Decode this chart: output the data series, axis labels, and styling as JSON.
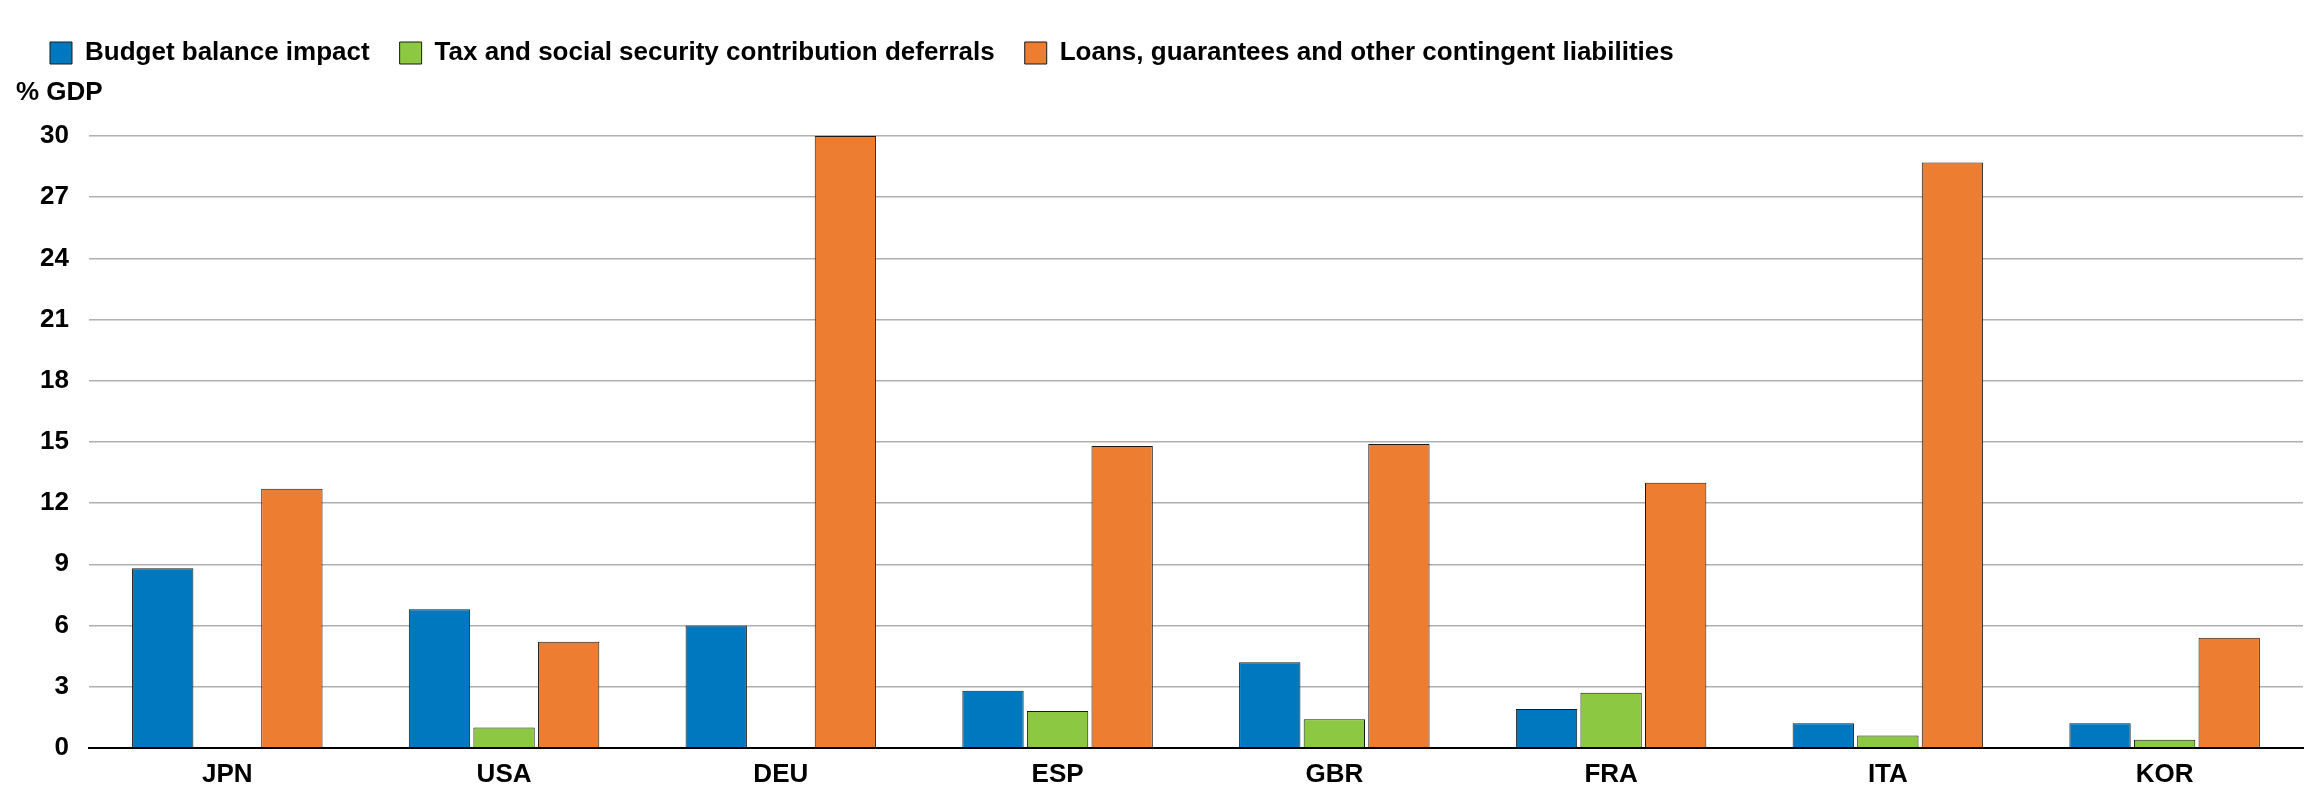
{
  "chart_data": {
    "type": "bar",
    "ylabel": "% GDP",
    "categories": [
      "JPN",
      "USA",
      "DEU",
      "ESP",
      "GBR",
      "FRA",
      "ITA",
      "KOR"
    ],
    "series": [
      {
        "name": "Budget balance impact",
        "color": "#0078bf",
        "values": [
          8.8,
          6.8,
          6.0,
          2.8,
          4.2,
          1.9,
          1.2,
          1.2
        ]
      },
      {
        "name": "Tax and social security contribution deferrals",
        "color": "#8cc841",
        "values": [
          null,
          1.0,
          null,
          1.8,
          1.4,
          2.7,
          0.6,
          0.4
        ]
      },
      {
        "name": "Loans, guarantees and other contingent liabilities",
        "color": "#ed7d31",
        "values": [
          12.7,
          5.2,
          30.0,
          14.8,
          14.9,
          13.0,
          28.7,
          5.4
        ]
      }
    ],
    "ylim": [
      0,
      30
    ],
    "yticks": [
      0,
      3,
      6,
      9,
      12,
      15,
      18,
      21,
      24,
      27,
      30
    ],
    "grid": "y",
    "legend": "top left"
  }
}
